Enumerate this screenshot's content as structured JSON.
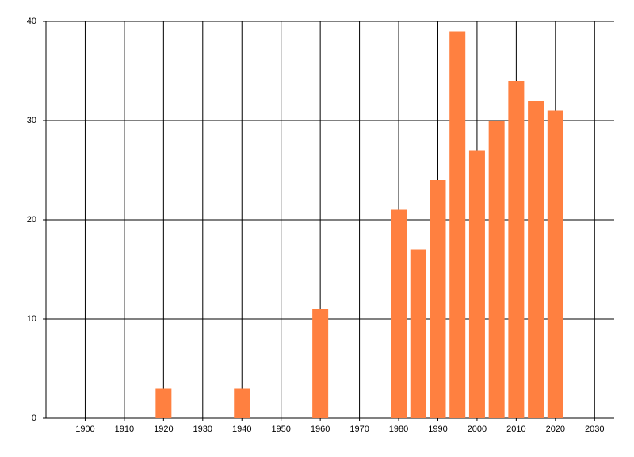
{
  "chart_data": {
    "type": "bar",
    "x": [
      1920,
      1940,
      1960,
      1980,
      1985,
      1990,
      1995,
      2000,
      2005,
      2010,
      2015,
      2020
    ],
    "values": [
      3,
      3,
      11,
      21,
      17,
      24,
      39,
      27,
      30,
      34,
      32,
      31
    ],
    "color": "#ff8040",
    "xlim": [
      1890,
      2035
    ],
    "xticks": [
      1900,
      1910,
      1920,
      1930,
      1940,
      1950,
      1960,
      1970,
      1980,
      1990,
      2000,
      2010,
      2020,
      2030
    ],
    "ylim": [
      0,
      40
    ],
    "yticks": [
      0,
      10,
      20,
      30,
      40
    ],
    "grid": true
  }
}
